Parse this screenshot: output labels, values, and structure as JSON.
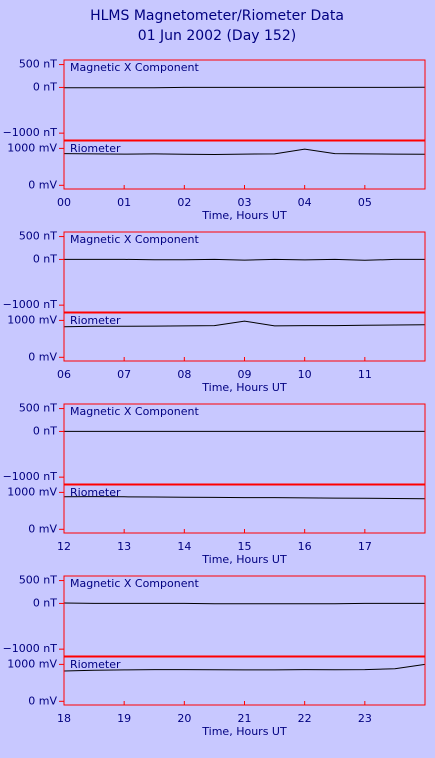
{
  "title": "HLMS Magnetometer/Riometer Data",
  "subtitle": "01 Jun 2002 (Day 152)",
  "chart_data": [
    {
      "type": "line",
      "label": "Magnetic X Component",
      "color": "#000000",
      "x": [
        0,
        0.5,
        1,
        1.5,
        2,
        2.5,
        3,
        3.5,
        4,
        4.5,
        5,
        5.5,
        6
      ],
      "values": [
        -5,
        -5,
        -5,
        -5,
        0,
        0,
        0,
        0,
        0,
        0,
        0,
        0,
        5
      ],
      "xlim": [
        0,
        6
      ],
      "ylim": [
        -1150,
        600
      ],
      "yticks": [
        {
          "value": 500,
          "label": "500 nT"
        },
        {
          "value": 0,
          "label": "0 nT"
        },
        {
          "value": -1000,
          "label": "−1000 nT"
        }
      ]
    },
    {
      "type": "line",
      "label": "Riometer",
      "color": "#000000",
      "x": [
        0,
        0.5,
        1,
        1.5,
        2,
        2.5,
        3,
        3.5,
        4,
        4.5,
        5,
        5.5,
        6
      ],
      "values": [
        860,
        850,
        845,
        850,
        840,
        835,
        845,
        850,
        980,
        860,
        850,
        845,
        840
      ],
      "xlim": [
        0,
        6
      ],
      "ylim": [
        -100,
        1200
      ],
      "yticks": [
        {
          "value": 1000,
          "label": "1000 mV"
        },
        {
          "value": 0,
          "label": "0 mV"
        }
      ],
      "xticks": [
        {
          "value": 0,
          "label": "00"
        },
        {
          "value": 1,
          "label": "01"
        },
        {
          "value": 2,
          "label": "02"
        },
        {
          "value": 3,
          "label": "03"
        },
        {
          "value": 4,
          "label": "04"
        },
        {
          "value": 5,
          "label": "05"
        }
      ],
      "xlabel": "Time, Hours UT"
    },
    {
      "type": "line",
      "label": "Magnetic X Component",
      "color": "#000000",
      "x": [
        6,
        6.5,
        7,
        7.5,
        8,
        8.5,
        9,
        9.5,
        10,
        10.5,
        11,
        11.5,
        12
      ],
      "values": [
        0,
        0,
        0,
        -5,
        -5,
        0,
        -15,
        0,
        -10,
        0,
        -20,
        0,
        0
      ],
      "xlim": [
        6,
        12
      ],
      "ylim": [
        -1150,
        600
      ],
      "yticks": [
        {
          "value": 500,
          "label": "500 nT"
        },
        {
          "value": 0,
          "label": "0 nT"
        },
        {
          "value": -1000,
          "label": "−1000 nT"
        }
      ]
    },
    {
      "type": "line",
      "label": "Riometer",
      "color": "#000000",
      "x": [
        6,
        6.5,
        7,
        7.5,
        8,
        8.5,
        9,
        9.5,
        10,
        10.5,
        11,
        11.5,
        12
      ],
      "values": [
        830,
        840,
        840,
        845,
        850,
        860,
        980,
        850,
        860,
        860,
        870,
        875,
        880
      ],
      "xlim": [
        6,
        12
      ],
      "ylim": [
        -100,
        1200
      ],
      "yticks": [
        {
          "value": 1000,
          "label": "1000 mV"
        },
        {
          "value": 0,
          "label": "0 mV"
        }
      ],
      "xticks": [
        {
          "value": 6,
          "label": "06"
        },
        {
          "value": 7,
          "label": "07"
        },
        {
          "value": 8,
          "label": "08"
        },
        {
          "value": 9,
          "label": "09"
        },
        10,
        11
      ],
      "xlabel": "Time, Hours UT"
    },
    {
      "type": "line",
      "label": "Magnetic X Component",
      "color": "#000000",
      "x": [
        12,
        12.5,
        13,
        13.5,
        14,
        14.5,
        15,
        15.5,
        16,
        16.5,
        17,
        17.5,
        18
      ],
      "values": [
        0,
        0,
        0,
        0,
        0,
        0,
        0,
        0,
        0,
        0,
        0,
        0,
        0
      ],
      "xlim": [
        12,
        18
      ],
      "ylim": [
        -1150,
        600
      ],
      "yticks": [
        {
          "value": 500,
          "label": "500 nT"
        },
        {
          "value": 0,
          "label": "0 nT"
        },
        {
          "value": -1000,
          "label": "−1000 nT"
        }
      ]
    },
    {
      "type": "line",
      "label": "Riometer",
      "color": "#000000",
      "x": [
        12,
        12.5,
        13,
        13.5,
        14,
        14.5,
        15,
        15.5,
        16,
        16.5,
        17,
        17.5,
        18
      ],
      "values": [
        880,
        885,
        880,
        875,
        870,
        865,
        860,
        860,
        850,
        845,
        840,
        835,
        825
      ],
      "xlim": [
        12,
        18
      ],
      "ylim": [
        -100,
        1200
      ],
      "yticks": [
        {
          "value": 1000,
          "label": "1000 mV"
        },
        {
          "value": 0,
          "label": "0 mV"
        }
      ],
      "xticks": [
        12,
        13,
        14,
        15,
        16,
        17
      ],
      "xlabel": "Time, Hours UT"
    },
    {
      "type": "line",
      "label": "Magnetic X Component",
      "color": "#000000",
      "x": [
        18,
        18.5,
        19,
        19.5,
        20,
        20.5,
        21,
        21.5,
        22,
        22.5,
        23,
        23.5,
        24
      ],
      "values": [
        10,
        0,
        0,
        0,
        0,
        -5,
        -5,
        -5,
        -5,
        -5,
        0,
        0,
        0
      ],
      "xlim": [
        18,
        24
      ],
      "ylim": [
        -1150,
        600
      ],
      "yticks": [
        {
          "value": 500,
          "label": "500 nT"
        },
        {
          "value": 0,
          "label": "0 nT"
        },
        {
          "value": -1000,
          "label": "−1000 nT"
        }
      ]
    },
    {
      "type": "line",
      "label": "Riometer",
      "color": "#000000",
      "x": [
        18,
        18.5,
        19,
        19.5,
        20,
        20.5,
        21,
        21.5,
        22,
        22.5,
        23,
        23.5,
        24
      ],
      "values": [
        820,
        840,
        850,
        860,
        860,
        855,
        850,
        850,
        860,
        855,
        860,
        880,
        1000
      ],
      "xlim": [
        18,
        24
      ],
      "ylim": [
        -100,
        1200
      ],
      "yticks": [
        {
          "value": 1000,
          "label": "1000 mV"
        },
        {
          "value": 0,
          "label": "0 mV"
        }
      ],
      "xticks": [
        18,
        19,
        20,
        21,
        22,
        23
      ],
      "xlabel": "Time, Hours UT"
    }
  ]
}
